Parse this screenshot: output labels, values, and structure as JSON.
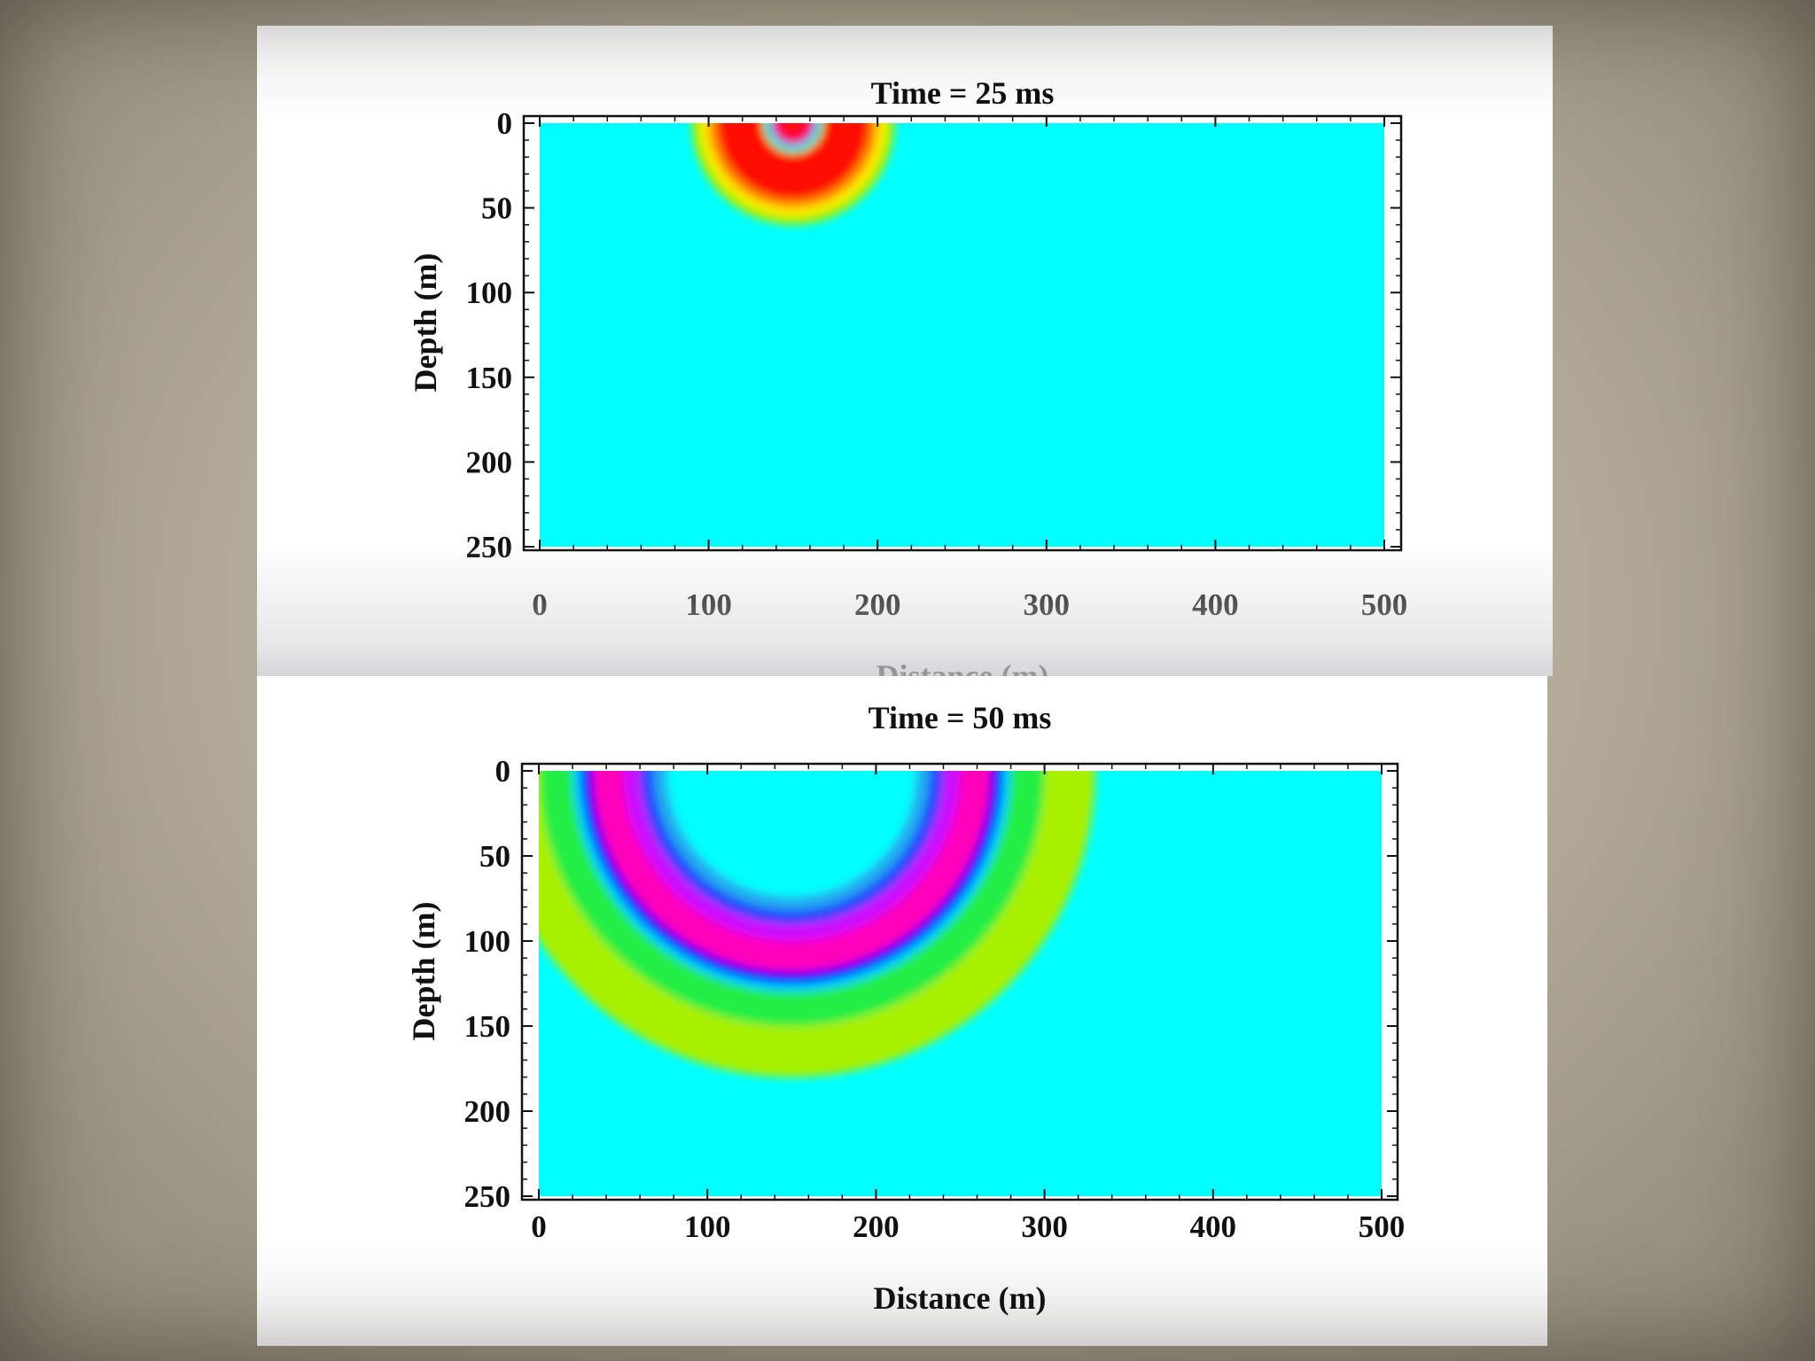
{
  "chart_data": [
    {
      "type": "heatmap",
      "title": "Time = 25 ms",
      "xlabel": "Distance (m)",
      "ylabel": "Depth (m)",
      "xlim": [
        0,
        500
      ],
      "ylim": [
        0,
        250
      ],
      "y_inverted": true,
      "xticks": [
        "0",
        "100",
        "200",
        "300",
        "400",
        "500"
      ],
      "yticks": [
        "0",
        "50",
        "100",
        "150",
        "200",
        "250"
      ],
      "background_color": "#00ffff",
      "source": {
        "x": 150,
        "y": 0
      },
      "rings": [
        {
          "radius": 60,
          "color": "#a8f000"
        },
        {
          "radius": 55,
          "color": "#ffee00"
        },
        {
          "radius": 50,
          "color": "#ff8800"
        },
        {
          "radius": 45,
          "color": "#ff1100"
        },
        {
          "radius": 18,
          "color": "#22ee44"
        },
        {
          "radius": 16,
          "color": "#00ffff"
        },
        {
          "radius": 14,
          "color": "#0066ff"
        },
        {
          "radius": 12,
          "color": "#ff0066"
        },
        {
          "radius": 8,
          "color": "#ff1111"
        }
      ]
    },
    {
      "type": "heatmap",
      "title": "Time = 50 ms",
      "xlabel": "Distance (m)",
      "ylabel": "Depth (m)",
      "xlim": [
        0,
        500
      ],
      "ylim": [
        0,
        250
      ],
      "y_inverted": true,
      "xticks": [
        "0",
        "100",
        "200",
        "300",
        "400",
        "500"
      ],
      "yticks": [
        "0",
        "50",
        "100",
        "150",
        "200",
        "250"
      ],
      "background_color": "#00ffff",
      "source": {
        "x": 150,
        "y": 0
      },
      "rings": [
        {
          "radius": 180,
          "color": "#a8f000"
        },
        {
          "radius": 150,
          "color": "#22ee44"
        },
        {
          "radius": 130,
          "color": "#00ccff"
        },
        {
          "radius": 125,
          "color": "#0000ff"
        },
        {
          "radius": 118,
          "color": "#ff00bb"
        },
        {
          "radius": 100,
          "color": "#cc11ff"
        },
        {
          "radius": 90,
          "color": "#2244ff"
        },
        {
          "radius": 82,
          "color": "#22aaee"
        },
        {
          "radius": 74,
          "color": "#00ffff"
        }
      ]
    }
  ]
}
